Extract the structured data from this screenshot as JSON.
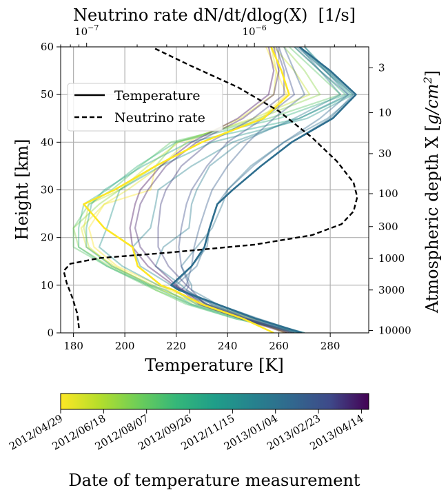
{
  "chart_data": {
    "type": "line",
    "top_axis_label": "Neutrino rate dN/dt/dlog(X)  [1/s]",
    "xlabel": "Temperature [K]",
    "ylabel": "Height [km]",
    "right_axis_label": "Atmospheric depth X [$g/cm^2$]",
    "right_axis_label_base": "Atmospheric depth X [",
    "right_axis_label_unit": "g/cm",
    "right_axis_label_exp": "2",
    "right_axis_label_close": "]",
    "xlim": [
      175,
      295
    ],
    "ylim": [
      0,
      60
    ],
    "x_ticks": [
      "180",
      "200",
      "220",
      "240",
      "260",
      "280"
    ],
    "y_ticks": [
      "0",
      "10",
      "20",
      "30",
      "40",
      "50",
      "60"
    ],
    "top_ticks": [
      {
        "base": "10",
        "exp": "−7",
        "value": 1e-07
      },
      {
        "base": "10",
        "exp": "−6",
        "value": 1e-06
      }
    ],
    "top_log_range": [
      7e-08,
      4.8e-06
    ],
    "right_ticks": [
      {
        "label": "3",
        "height": 55.6
      },
      {
        "label": "10",
        "height": 46.2
      },
      {
        "label": "30",
        "height": 37.6
      },
      {
        "label": "100",
        "height": 29.2
      },
      {
        "label": "300",
        "height": 22.3
      },
      {
        "label": "1000",
        "height": 15.6
      },
      {
        "label": "3000",
        "height": 9.0
      },
      {
        "label": "10000",
        "height": 0.5
      }
    ],
    "grid": true,
    "legend": {
      "position": "upper-left",
      "entries": [
        {
          "label": "Temperature",
          "style": "solid"
        },
        {
          "label": "Neutrino rate",
          "style": "dashed"
        }
      ]
    },
    "neutrino_rate": {
      "unit": "1/s",
      "points": [
        {
          "rate": 9e-08,
          "height": 1.0
        },
        {
          "rate": 8.8e-08,
          "height": 4.0
        },
        {
          "rate": 8.2e-08,
          "height": 7.5
        },
        {
          "rate": 7.6e-08,
          "height": 10.5
        },
        {
          "rate": 7.3e-08,
          "height": 13.0
        },
        {
          "rate": 8e-08,
          "height": 14.5
        },
        {
          "rate": 1.2e-07,
          "height": 15.7
        },
        {
          "rate": 3e-07,
          "height": 16.8
        },
        {
          "rate": 1e-06,
          "height": 18.5
        },
        {
          "rate": 2.2e-06,
          "height": 20.5
        },
        {
          "rate": 3.3e-06,
          "height": 22.8
        },
        {
          "rate": 3.9e-06,
          "height": 25.5
        },
        {
          "rate": 4.1e-06,
          "height": 28.5
        },
        {
          "rate": 3.9e-06,
          "height": 31.5
        },
        {
          "rate": 3.1e-06,
          "height": 36.0
        },
        {
          "rate": 2.2e-06,
          "height": 41.0
        },
        {
          "rate": 1.4e-06,
          "height": 46.5
        },
        {
          "rate": 8e-07,
          "height": 51.5
        },
        {
          "rate": 4.2e-07,
          "height": 56.0
        },
        {
          "rate": 2.5e-07,
          "height": 59.8
        }
      ]
    },
    "colorbar": {
      "label": "Date of temperature measurement",
      "colormap": "viridis",
      "ticks": [
        "2012/04/29",
        "2012/06/18",
        "2012/08/07",
        "2012/09/26",
        "2012/11/15",
        "2013/01/04",
        "2013/02/23",
        "2013/04/14"
      ]
    },
    "heights_km": [
      0,
      3,
      6,
      9,
      10,
      14,
      18,
      22,
      27,
      30,
      35,
      40,
      45,
      50,
      55,
      60
    ],
    "series": [
      {
        "date": "2012/05/01",
        "frac": 0.0,
        "temperatures": [
          262,
          250,
          232,
          217,
          213,
          197,
          188,
          186,
          192,
          210,
          212,
          230,
          253,
          263,
          259,
          255
        ]
      },
      {
        "date": "2012/05/15",
        "frac": 0.05,
        "temperatures": [
          263,
          248,
          230,
          214,
          210,
          196,
          185,
          183,
          192,
          201,
          214,
          224,
          245,
          258,
          259,
          257
        ]
      },
      {
        "date": "2012/06/05",
        "frac": 0.1,
        "temperatures": [
          264,
          246,
          228,
          215,
          211,
          195,
          186,
          184,
          186,
          198,
          209,
          221,
          250,
          272,
          266,
          258
        ]
      },
      {
        "date": "2012/06/30",
        "frac": 0.2,
        "temperatures": [
          266,
          245,
          226,
          212,
          209,
          194,
          182,
          180,
          190,
          198,
          212,
          220,
          252,
          276,
          270,
          262
        ]
      },
      {
        "date": "2012/07/25",
        "frac": 0.3,
        "temperatures": [
          267,
          243,
          224,
          212,
          208,
          193,
          180,
          180,
          186,
          195,
          206,
          218,
          256,
          284,
          274,
          264
        ]
      },
      {
        "date": "2012/08/20",
        "frac": 0.4,
        "temperatures": [
          269,
          243,
          225,
          214,
          209,
          193,
          182,
          182,
          184,
          193,
          205,
          220,
          260,
          286,
          276,
          266
        ]
      },
      {
        "date": "2012/09/15",
        "frac": 0.48,
        "temperatures": [
          269,
          245,
          226,
          216,
          210,
          195,
          185,
          185,
          187,
          192,
          207,
          225,
          268,
          288,
          278,
          268
        ]
      },
      {
        "date": "2012/10/10",
        "frac": 0.55,
        "temperatures": [
          270,
          247,
          228,
          219,
          213,
          199,
          190,
          193,
          196,
          198,
          214,
          234,
          271,
          289,
          279,
          270
        ]
      },
      {
        "date": "2012/11/05",
        "frac": 0.62,
        "temperatures": [
          270,
          250,
          232,
          222,
          218,
          206,
          203,
          210,
          212,
          213,
          226,
          242,
          268,
          287,
          278,
          270
        ]
      },
      {
        "date": "2012/11/20",
        "frac": 0.66,
        "temperatures": [
          269,
          251,
          234,
          224,
          222,
          212,
          215,
          225,
          226,
          228,
          233,
          245,
          266,
          284,
          276,
          268
        ]
      },
      {
        "date": "2012/12/05",
        "frac": 0.7,
        "temperatures": [
          269,
          252,
          236,
          226,
          226,
          222,
          228,
          234,
          238,
          240,
          249,
          262,
          279,
          290,
          279,
          268
        ]
      },
      {
        "date": "2012/12/20",
        "frac": 0.72,
        "temperatures": [
          268,
          250,
          236,
          222,
          219,
          226,
          232,
          233,
          236,
          242,
          253,
          265,
          280,
          289,
          278,
          267
        ]
      },
      {
        "date": "2013/01/05",
        "frac": 0.75,
        "temperatures": [
          267,
          248,
          234,
          222,
          220,
          228,
          231,
          233,
          236,
          240,
          250,
          262,
          276,
          287,
          276,
          266
        ]
      },
      {
        "date": "2013/01/25",
        "frac": 0.8,
        "temperatures": [
          266,
          247,
          232,
          222,
          224,
          226,
          227,
          229,
          232,
          234,
          240,
          248,
          258,
          270,
          266,
          262
        ]
      },
      {
        "date": "2013/02/15",
        "frac": 0.86,
        "temperatures": [
          266,
          248,
          232,
          224,
          225,
          222,
          221,
          222,
          224,
          226,
          232,
          240,
          254,
          266,
          263,
          260
        ]
      },
      {
        "date": "2013/03/05",
        "frac": 0.9,
        "temperatures": [
          265,
          247,
          231,
          226,
          224,
          217,
          213,
          213,
          214,
          216,
          222,
          233,
          250,
          262,
          262,
          259
        ]
      },
      {
        "date": "2013/03/25",
        "frac": 0.95,
        "temperatures": [
          264,
          246,
          230,
          223,
          220,
          212,
          206,
          204,
          206,
          209,
          216,
          228,
          246,
          258,
          260,
          258
        ]
      },
      {
        "date": "2013/04/10",
        "frac": 0.98,
        "temperatures": [
          263,
          245,
          229,
          222,
          219,
          209,
          203,
          202,
          204,
          206,
          214,
          226,
          244,
          256,
          258,
          256
        ]
      }
    ],
    "highlighted_series": [
      {
        "date": "2012/05/01",
        "frac": 0.0,
        "temperatures": [
          258,
          246,
          230,
          219,
          214,
          205,
          203,
          192,
          184,
          196,
          212,
          230,
          254,
          264,
          261,
          257
        ]
      },
      {
        "date": "2013/01/04",
        "frac": 0.72,
        "temperatures": [
          269,
          251,
          236,
          221,
          218,
          226,
          231,
          233,
          236,
          242,
          253,
          265,
          281,
          290,
          280,
          268
        ]
      }
    ]
  }
}
